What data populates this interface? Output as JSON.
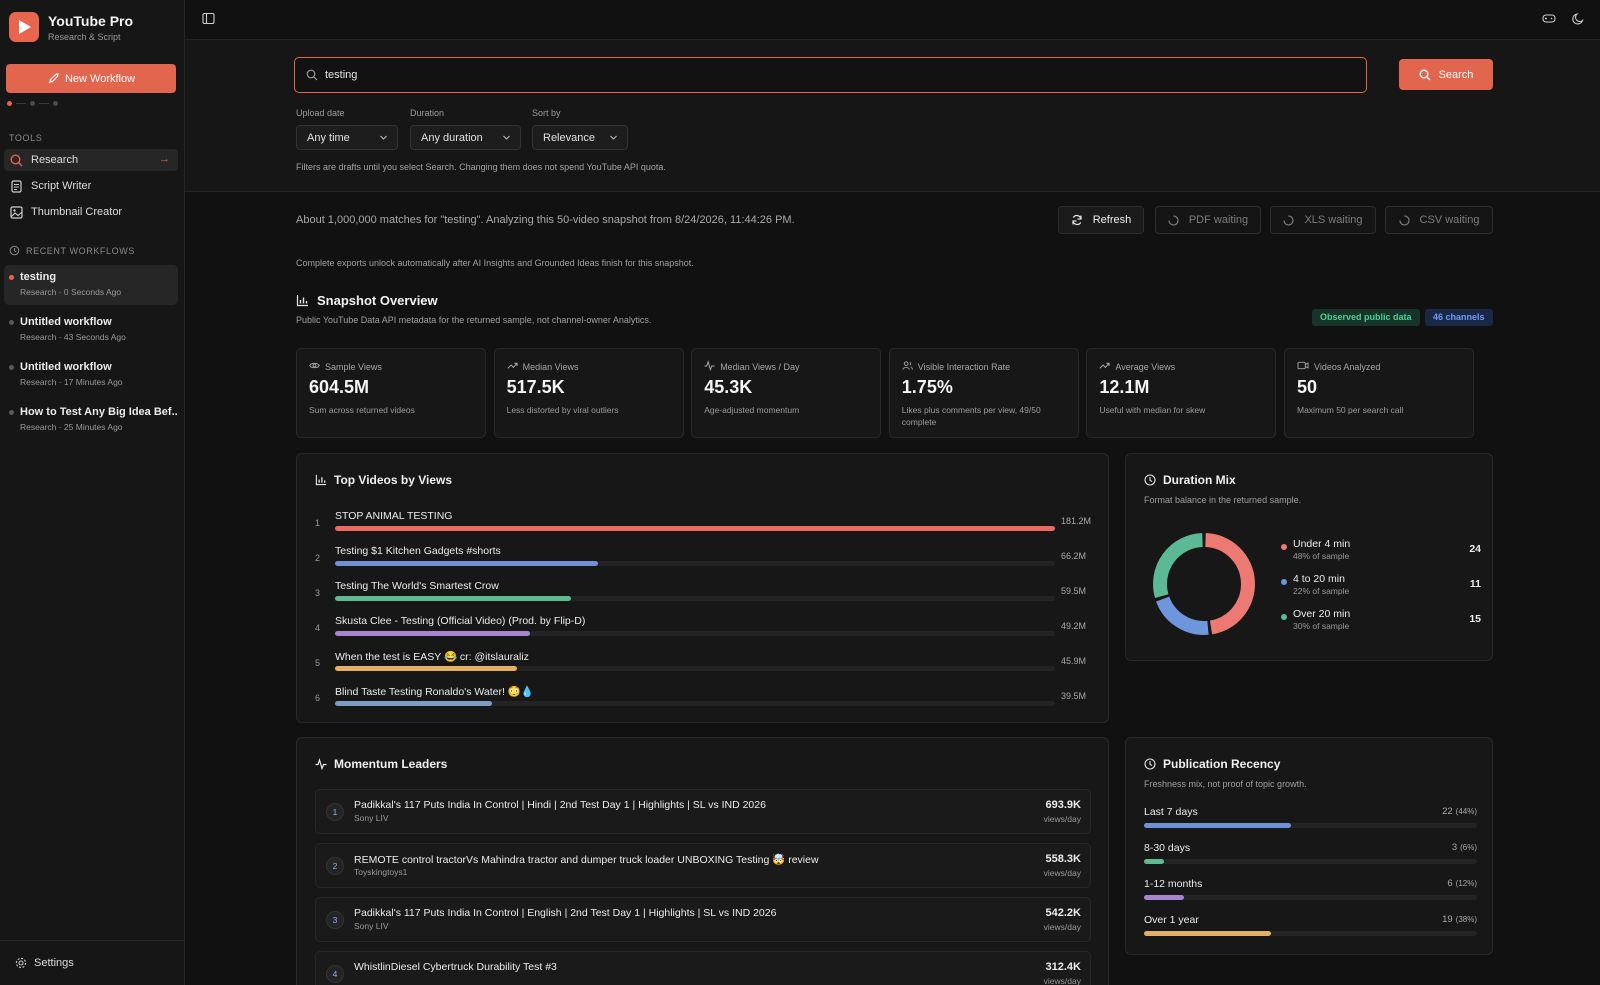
{
  "brand": {
    "title": "YouTube Pro",
    "subtitle": "Research & Script"
  },
  "sidebar": {
    "new_workflow": "New Workflow",
    "tools_label": "TOOLS",
    "tools": [
      {
        "label": "Research",
        "active": true
      },
      {
        "label": "Script Writer"
      },
      {
        "label": "Thumbnail Creator"
      }
    ],
    "recent_label": "RECENT WORKFLOWS",
    "workflows": [
      {
        "title": "testing",
        "meta": "Research · 0 Seconds Ago",
        "active": true
      },
      {
        "title": "Untitled workflow",
        "meta": "Research · 43 Seconds Ago"
      },
      {
        "title": "Untitled workflow",
        "meta": "Research · 17 Minutes Ago"
      },
      {
        "title": "How to Test Any Big Idea Bef...",
        "meta": "Research · 25 Minutes Ago"
      }
    ],
    "settings": "Settings"
  },
  "search": {
    "value": "testing",
    "button": "Search",
    "filters": [
      {
        "label": "Upload date",
        "value": "Any time"
      },
      {
        "label": "Duration",
        "value": "Any duration"
      },
      {
        "label": "Sort by",
        "value": "Relevance"
      }
    ],
    "note": "Filters are drafts until you select Search. Changing them does not spend YouTube API quota."
  },
  "status": {
    "text": "About 1,000,000 matches for \"testing\". Analyzing this 50-video snapshot from 8/24/2026, 11:44:26 PM.",
    "refresh": "Refresh",
    "pdf": "PDF waiting",
    "xls": "XLS waiting",
    "csv": "CSV waiting",
    "note": "Complete exports unlock automatically after AI Insights and Grounded Ideas finish for this snapshot."
  },
  "overview": {
    "title": "Snapshot Overview",
    "subtitle": "Public YouTube Data API metadata for the returned sample, not channel-owner Analytics.",
    "badge_public": "Observed public data",
    "badge_channels": "46 channels",
    "stats": [
      {
        "label": "Sample Views",
        "value": "604.5M",
        "note": "Sum across returned videos",
        "icon": "eye-icon"
      },
      {
        "label": "Median Views",
        "value": "517.5K",
        "note": "Less distorted by viral outliers",
        "icon": "trend-icon"
      },
      {
        "label": "Median Views / Day",
        "value": "45.3K",
        "note": "Age-adjusted momentum",
        "icon": "pulse-icon"
      },
      {
        "label": "Visible Interaction Rate",
        "value": "1.75%",
        "note": "Likes plus comments per view, 49/50 complete",
        "icon": "users-icon"
      },
      {
        "label": "Average Views",
        "value": "12.1M",
        "note": "Useful with median for skew",
        "icon": "trend-icon"
      },
      {
        "label": "Videos Analyzed",
        "value": "50",
        "note": "Maximum 50 per search call",
        "icon": "video-icon"
      }
    ]
  },
  "top_videos": {
    "title": "Top Videos by Views",
    "items": [
      {
        "rank": "1",
        "title": "STOP ANIMAL TESTING",
        "views": "181.2M",
        "value": 181.2,
        "color": "#ec6b5e"
      },
      {
        "rank": "2",
        "title": "Testing $1 Kitchen Gadgets #shorts",
        "views": "66.2M",
        "value": 66.2,
        "color": "#7191d6"
      },
      {
        "rank": "3",
        "title": "Testing The World's Smartest Crow",
        "views": "59.5M",
        "value": 59.5,
        "color": "#5fb991"
      },
      {
        "rank": "4",
        "title": "Skusta Clee - Testing (Official Video) (Prod. by Flip-D)",
        "views": "49.2M",
        "value": 49.2,
        "color": "#a585cf"
      },
      {
        "rank": "5",
        "title": "When the test is EASY 😂 cr: @itslauraliz",
        "views": "45.9M",
        "value": 45.9,
        "color": "#e3b166"
      },
      {
        "rank": "6",
        "title": "Blind Taste Testing Ronaldo's Water! 😳💧",
        "views": "39.5M",
        "value": 39.5,
        "color": "#7e9cc0"
      }
    ]
  },
  "duration_mix": {
    "title": "Duration Mix",
    "subtitle": "Format balance in the returned sample.",
    "items": [
      {
        "name": "Under 4 min",
        "pct": "48% of sample",
        "count": "24",
        "value": 24,
        "color": "#ec7a72"
      },
      {
        "name": "4 to 20 min",
        "pct": "22% of sample",
        "count": "11",
        "value": 11,
        "color": "#6f95dc"
      },
      {
        "name": "Over 20 min",
        "pct": "30% of sample",
        "count": "15",
        "value": 15,
        "color": "#5cb995"
      }
    ]
  },
  "momentum": {
    "title": "Momentum Leaders",
    "unit": "views/day",
    "items": [
      {
        "rank": "1",
        "title": "Padikkal's 117 Puts India In Control | Hindi | 2nd Test Day 1 | Highlights | SL vs IND 2026",
        "channel": "Sony LIV",
        "value": "693.9K"
      },
      {
        "rank": "2",
        "title": "REMOTE control tractorVs Mahindra tractor and dumper truck loader UNBOXING Testing 🤯 review",
        "channel": "Toyskingtoys1",
        "value": "558.3K"
      },
      {
        "rank": "3",
        "title": "Padikkal's 117 Puts India In Control | English | 2nd Test Day 1 | Highlights | SL vs IND 2026",
        "channel": "Sony LIV",
        "value": "542.2K"
      },
      {
        "rank": "4",
        "title": "WhistlinDiesel Cybertruck Durability Test #3",
        "channel": "",
        "value": "312.4K"
      }
    ]
  },
  "recency": {
    "title": "Publication Recency",
    "subtitle": "Freshness mix, not proof of topic growth.",
    "items": [
      {
        "label": "Last 7 days",
        "count": "22",
        "pct": "(44%)",
        "value": 0.44,
        "color": "#7191d6"
      },
      {
        "label": "8-30 days",
        "count": "3",
        "pct": "(6%)",
        "value": 0.06,
        "color": "#5fb991"
      },
      {
        "label": "1-12 months",
        "count": "6",
        "pct": "(12%)",
        "value": 0.12,
        "color": "#a585cf"
      },
      {
        "label": "Over 1 year",
        "count": "19",
        "pct": "(38%)",
        "value": 0.38,
        "color": "#e3b166"
      }
    ]
  }
}
